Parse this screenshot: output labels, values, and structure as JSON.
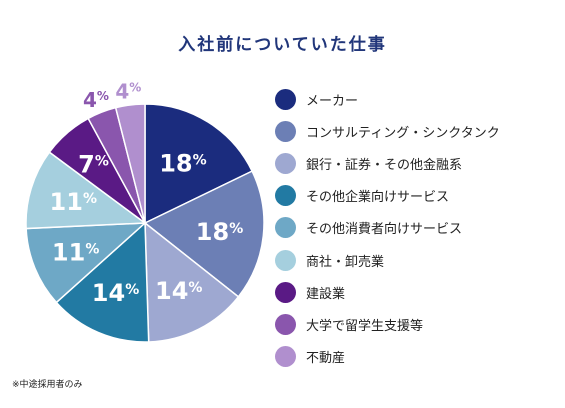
{
  "chart_data": {
    "type": "pie",
    "title": "入社前についていた仕事",
    "footnote": "※中途採用者のみ",
    "slices": [
      {
        "label": "メーカー",
        "value": 18,
        "color": "#1b2c7e"
      },
      {
        "label": "コンサルティング・シンクタンク",
        "value": 18,
        "color": "#6c7fb5"
      },
      {
        "label": "銀行・証券・その他金融系",
        "value": 14,
        "color": "#9ea8d1"
      },
      {
        "label": "その他企業向けサービス",
        "value": 14,
        "color": "#227aa3"
      },
      {
        "label": "その他消費者向けサービス",
        "value": 11,
        "color": "#6ea8c6"
      },
      {
        "label": "商社・卸売業",
        "value": 11,
        "color": "#a5cfde"
      },
      {
        "label": "建設業",
        "value": 7,
        "color": "#5a1a85"
      },
      {
        "label": "大学で留学生支援等",
        "value": 4,
        "color": "#8a56ad"
      },
      {
        "label": "不動産",
        "value": 4,
        "color": "#b08fce"
      }
    ],
    "value_suffix": "%",
    "legend_position": "right"
  }
}
